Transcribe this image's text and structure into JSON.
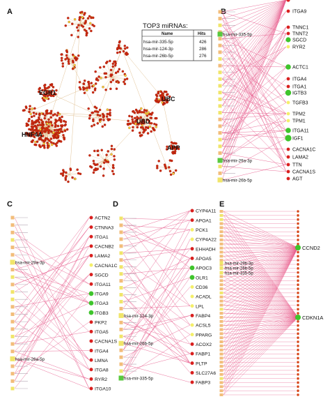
{
  "panels": {
    "A": {
      "label": "A",
      "hubs": [
        "EGR1",
        "UBC",
        "HNF4A",
        "UBD",
        "APP"
      ],
      "table": {
        "title": "TOP3 miRNAs:",
        "headers": [
          "Name",
          "Hits"
        ],
        "rows": [
          [
            "hsa-mir-335-5p",
            "426"
          ],
          [
            "hsa-mir-124-3p",
            "286"
          ],
          [
            "hsa-mir-26b-5p",
            "276"
          ]
        ]
      }
    },
    "B": {
      "label": "B",
      "mirna_labels": [
        "hsa-mir-335-5p",
        "hsa-mir-29a-3p",
        "hsa-mir-26b-5p"
      ],
      "genes": [
        "ITGA9",
        "TNNC1",
        "TNNT2",
        "SGCD",
        "RYR2",
        "ACTC1",
        "ITGA4",
        "ITGA1",
        "IGTB3",
        "TGFB3",
        "TPM2",
        "TPM1",
        "ITGA11",
        "IGF1",
        "CACNA1C",
        "LAMA2",
        "TTN",
        "CACNA1S",
        "AGT"
      ]
    },
    "C": {
      "label": "C",
      "mirna_labels": [
        "hsa-mir-29a-3p",
        "hsa-mir-26a-5p"
      ],
      "genes": [
        "ACTN2",
        "CTNNA3",
        "ITGA1",
        "CACNB2",
        "LAMA2",
        "CACNA1C",
        "SGCD",
        "ITGA11",
        "ITGA9",
        "ITGA3",
        "ITGB3",
        "PKP2",
        "ITGA5",
        "CACNA1S",
        "ITGA4",
        "LMNA",
        "ITGA8",
        "RYR2",
        "ITGA10"
      ]
    },
    "D": {
      "label": "D",
      "mirna_labels": [
        "hsa-mir-124-3p",
        "hsa-mir-26b-5p",
        "hsa-mir-335-5p"
      ],
      "genes": [
        "CYP4A11",
        "APOA1",
        "PCK1",
        "CYP4A22",
        "EHHADH",
        "APOA5",
        "APOC3",
        "OLR1",
        "CD36",
        "ACADL",
        "LPL",
        "FABP4",
        "ACSL5",
        "PPARG",
        "ACOX2",
        "FABP1",
        "PLTP",
        "SLC27A6",
        "FABP3"
      ]
    },
    "E": {
      "label": "E",
      "mirna_labels": [
        "hsa-mir-29b-3p",
        "hsa-mir-26b-5p",
        "hsa-mir-335-5p"
      ],
      "genes": [
        "CCND2",
        "CDKN1A"
      ]
    }
  },
  "colors": {
    "edge": "#e8608e",
    "gene_red": "#d9201f",
    "gene_green": "#3fc42c",
    "gene_yellow": "#f4ef6a",
    "mirna_orange": "#f2bd7a",
    "mirna_green": "#59c93e",
    "mirna_yellow": "#f0e56a",
    "network_node": "#cc2a10",
    "network_edge": "#d9b27a"
  }
}
